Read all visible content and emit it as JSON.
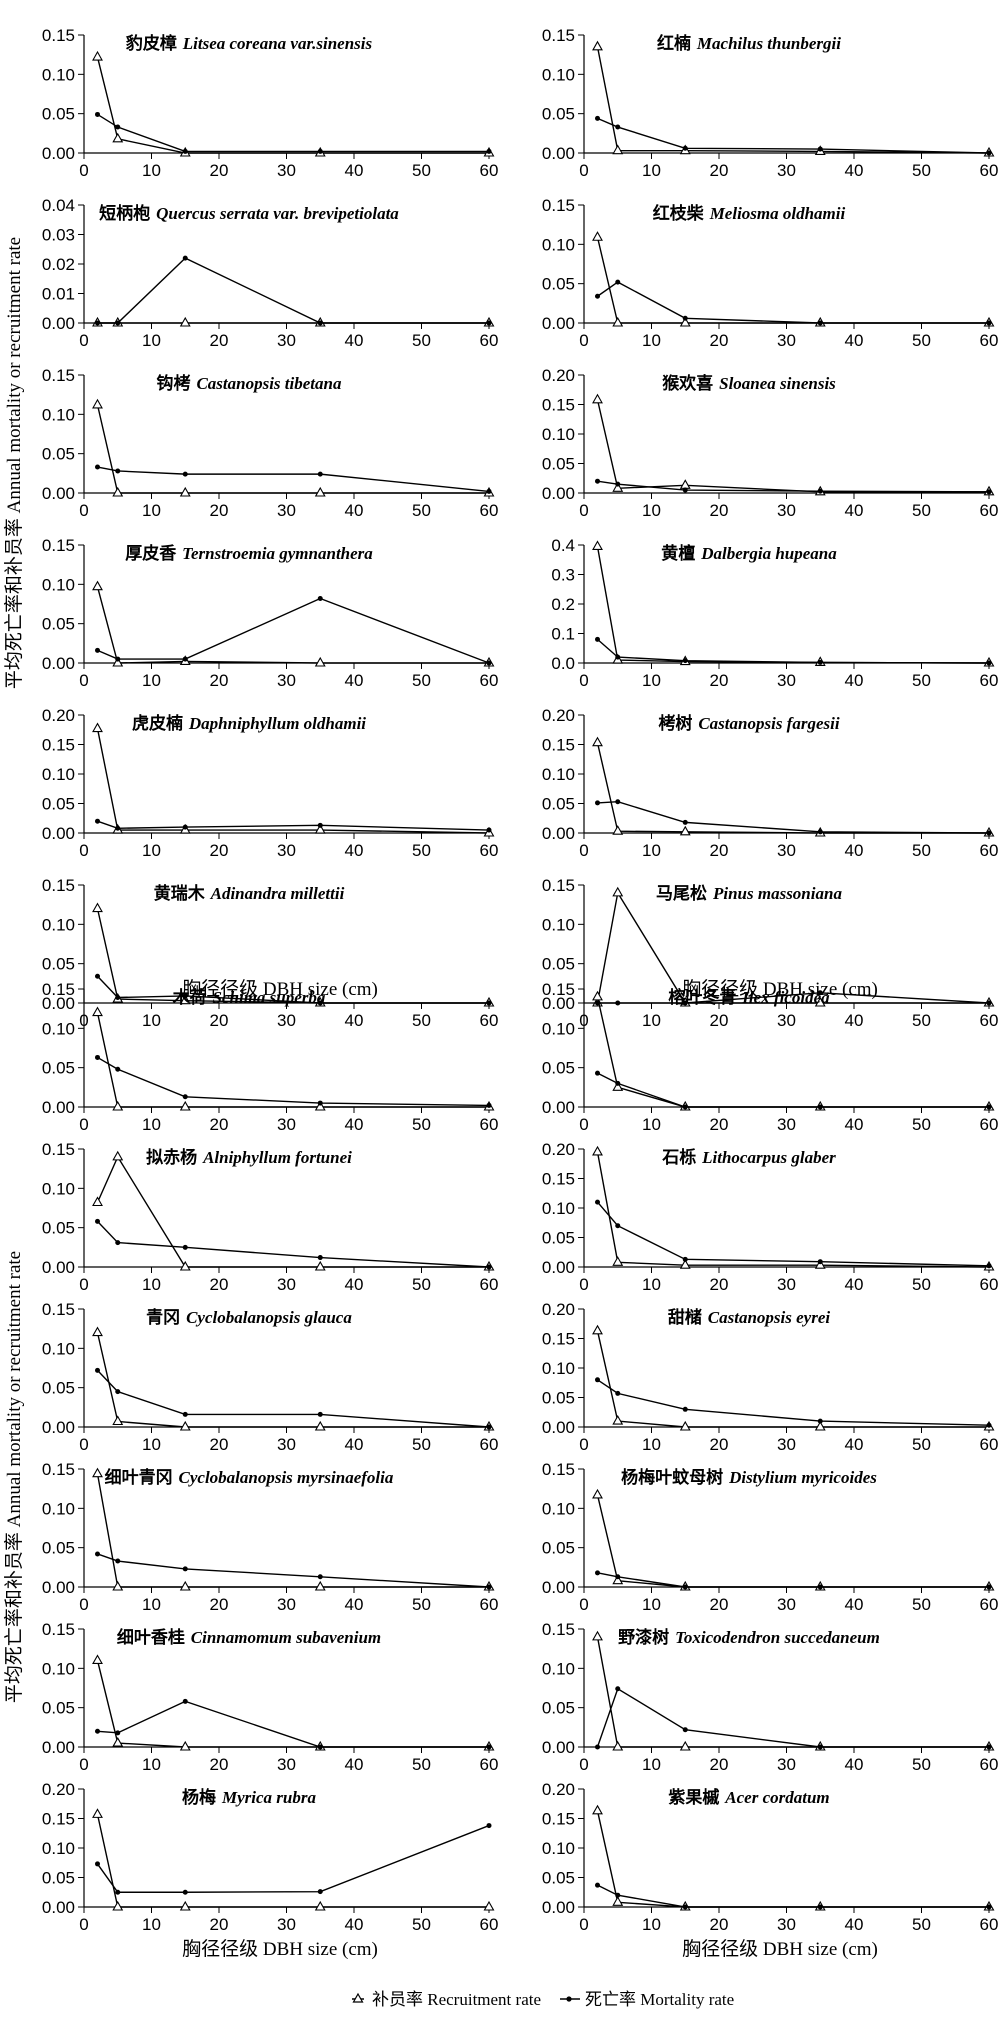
{
  "figure": {
    "ylabel": "平均死亡率和补员率 Annual mortality or recruitment rate",
    "xlabel": "胸径径级  DBH size (cm)",
    "legend": {
      "recruitment": "补员率 Recruitment rate",
      "mortality": "死亡率 Mortality rate"
    },
    "x_ticks": [
      0,
      10,
      20,
      30,
      40,
      50,
      60
    ]
  },
  "chart_data": [
    {
      "type": "line",
      "title_cn": "豹皮樟",
      "title_la": "Litsea coreana var.sinensis",
      "x": [
        2,
        5,
        15,
        35,
        60
      ],
      "ylim": [
        0,
        0.15
      ],
      "y_ticks": [
        "0.00",
        "0.05",
        "0.10",
        "0.15"
      ],
      "series": [
        {
          "name": "补员率 Recruitment rate",
          "values": [
            0.122,
            0.018,
            0,
            0,
            0
          ]
        },
        {
          "name": "死亡率 Mortality rate",
          "values": [
            0.049,
            0.033,
            0.002,
            0.002,
            0.002
          ]
        }
      ]
    },
    {
      "type": "line",
      "title_cn": "红楠",
      "title_la": "Machilus thunbergii",
      "x": [
        2,
        5,
        15,
        35,
        60
      ],
      "ylim": [
        0,
        0.15
      ],
      "y_ticks": [
        "0.00",
        "0.05",
        "0.10",
        "0.15"
      ],
      "series": [
        {
          "name": "补员率 Recruitment rate",
          "values": [
            0.135,
            0.003,
            0.003,
            0.002,
            0
          ]
        },
        {
          "name": "死亡率 Mortality rate",
          "values": [
            0.044,
            0.033,
            0.006,
            0.005,
            0
          ]
        }
      ]
    },
    {
      "type": "line",
      "title_cn": "短柄枹",
      "title_la": "Quercus serrata var. brevipetiolata",
      "x": [
        2,
        5,
        15,
        35,
        60
      ],
      "ylim": [
        0,
        0.04
      ],
      "y_ticks": [
        "0.00",
        "0.01",
        "0.02",
        "0.03",
        "0.04"
      ],
      "series": [
        {
          "name": "补员率 Recruitment rate",
          "values": [
            0,
            0,
            0,
            0,
            0
          ]
        },
        {
          "name": "死亡率 Mortality rate",
          "values": [
            0,
            0,
            0.022,
            0,
            0
          ]
        }
      ]
    },
    {
      "type": "line",
      "title_cn": "红枝柴",
      "title_la": "Meliosma oldhamii",
      "x": [
        2,
        5,
        15,
        35,
        60
      ],
      "ylim": [
        0,
        0.15
      ],
      "y_ticks": [
        "0.00",
        "0.05",
        "0.10",
        "0.15"
      ],
      "series": [
        {
          "name": "补员率 Recruitment rate",
          "values": [
            0.109,
            0,
            0,
            0,
            0
          ]
        },
        {
          "name": "死亡率 Mortality rate",
          "values": [
            0.034,
            0.052,
            0.006,
            0,
            0
          ]
        }
      ]
    },
    {
      "type": "line",
      "title_cn": "钩栲",
      "title_la": "Castanopsis tibetana",
      "x": [
        2,
        5,
        15,
        35,
        60
      ],
      "ylim": [
        0,
        0.15
      ],
      "y_ticks": [
        "0.00",
        "0.05",
        "0.10",
        "0.15"
      ],
      "series": [
        {
          "name": "补员率 Recruitment rate",
          "values": [
            0.112,
            0,
            0,
            0,
            0
          ]
        },
        {
          "name": "死亡率 Mortality rate",
          "values": [
            0.033,
            0.028,
            0.024,
            0.024,
            0.002
          ]
        }
      ]
    },
    {
      "type": "line",
      "title_cn": "猴欢喜",
      "title_la": "Sloanea sinensis",
      "x": [
        2,
        5,
        15,
        35,
        60
      ],
      "ylim": [
        0,
        0.2
      ],
      "y_ticks": [
        "0.00",
        "0.05",
        "0.10",
        "0.15",
        "0.20"
      ],
      "series": [
        {
          "name": "补员率 Recruitment rate",
          "values": [
            0.158,
            0.008,
            0.013,
            0.002,
            0.002
          ]
        },
        {
          "name": "死亡率 Mortality rate",
          "values": [
            0.02,
            0.015,
            0.005,
            0.003,
            0.002
          ]
        }
      ]
    },
    {
      "type": "line",
      "title_cn": "厚皮香",
      "title_la": "Ternstroemia gymnanthera",
      "x": [
        2,
        5,
        15,
        35,
        60
      ],
      "ylim": [
        0,
        0.15
      ],
      "y_ticks": [
        "0.00",
        "0.05",
        "0.10",
        "0.15"
      ],
      "series": [
        {
          "name": "补员率 Recruitment rate",
          "values": [
            0.097,
            0,
            0.002,
            0,
            0
          ]
        },
        {
          "name": "死亡率 Mortality rate",
          "values": [
            0.016,
            0.005,
            0.005,
            0.082,
            0
          ]
        }
      ]
    },
    {
      "type": "line",
      "title_cn": "黄檀",
      "title_la": "Dalbergia hupeana",
      "x": [
        2,
        5,
        15,
        35,
        60
      ],
      "ylim": [
        0,
        0.4
      ],
      "y_ticks": [
        "0.0",
        "0.1",
        "0.2",
        "0.3",
        "0.4"
      ],
      "series": [
        {
          "name": "补员率 Recruitment rate",
          "values": [
            0.395,
            0.01,
            0.005,
            0.002,
            0
          ]
        },
        {
          "name": "死亡率 Mortality rate",
          "values": [
            0.08,
            0.02,
            0.008,
            0.002,
            0
          ]
        }
      ]
    },
    {
      "type": "line",
      "title_cn": "虎皮楠",
      "title_la": "Daphniphyllum oldhamii",
      "x": [
        2,
        5,
        15,
        35,
        60
      ],
      "ylim": [
        0,
        0.2
      ],
      "y_ticks": [
        "0.00",
        "0.05",
        "0.10",
        "0.15",
        "0.20"
      ],
      "series": [
        {
          "name": "补员率 Recruitment rate",
          "values": [
            0.177,
            0.005,
            0.005,
            0.005,
            0
          ]
        },
        {
          "name": "死亡率 Mortality rate",
          "values": [
            0.02,
            0.008,
            0.01,
            0.013,
            0.005
          ]
        }
      ]
    },
    {
      "type": "line",
      "title_cn": "栲树",
      "title_la": "Castanopsis fargesii",
      "x": [
        2,
        5,
        15,
        35,
        60
      ],
      "ylim": [
        0,
        0.2
      ],
      "y_ticks": [
        "0.00",
        "0.05",
        "0.10",
        "0.15",
        "0.20"
      ],
      "series": [
        {
          "name": "补员率 Recruitment rate",
          "values": [
            0.153,
            0.003,
            0.002,
            0,
            0
          ]
        },
        {
          "name": "死亡率 Mortality rate",
          "values": [
            0.051,
            0.053,
            0.018,
            0.002,
            0
          ]
        }
      ]
    },
    {
      "type": "line",
      "title_cn": "黄瑞木",
      "title_la": "Adinandra millettii",
      "x": [
        2,
        5,
        15,
        35,
        60
      ],
      "ylim": [
        0,
        0.15
      ],
      "y_ticks": [
        "0.00",
        "0.05",
        "0.10",
        "0.15"
      ],
      "series": [
        {
          "name": "补员率 Recruitment rate",
          "values": [
            0.12,
            0.005,
            0.003,
            0,
            0
          ]
        },
        {
          "name": "死亡率 Mortality rate",
          "values": [
            0.034,
            0.007,
            0.009,
            0,
            0
          ]
        }
      ]
    },
    {
      "type": "line",
      "title_cn": "马尾松",
      "title_la": "Pinus massoniana",
      "x": [
        2,
        5,
        15,
        35,
        60
      ],
      "ylim": [
        0,
        0.15
      ],
      "y_ticks": [
        "0.00",
        "0.05",
        "0.10",
        "0.15"
      ],
      "series": [
        {
          "name": "补员率 Recruitment rate",
          "values": [
            0,
            0.14,
            0,
            0,
            0
          ]
        },
        {
          "name": "死亡率 Mortality rate",
          "values": [
            0,
            0,
            0,
            0.013,
            0
          ]
        }
      ]
    },
    {
      "type": "line",
      "title_cn": "木荷",
      "title_la": "Schima superba",
      "x": [
        2,
        5,
        15,
        35,
        60
      ],
      "ylim": [
        0,
        0.15
      ],
      "y_ticks": [
        "0.00",
        "0.05",
        "0.10",
        "0.15"
      ],
      "series": [
        {
          "name": "补员率 Recruitment rate",
          "values": [
            0.12,
            0,
            0,
            0,
            0
          ]
        },
        {
          "name": "死亡率 Mortality rate",
          "values": [
            0.063,
            0.048,
            0.013,
            0.005,
            0.002
          ]
        }
      ]
    },
    {
      "type": "line",
      "title_cn": "榕叶冬青",
      "title_la": "Ilex ficoidea",
      "x": [
        2,
        5,
        15,
        35,
        60
      ],
      "ylim": [
        0,
        0.15
      ],
      "y_ticks": [
        "0.00",
        "0.05",
        "0.10",
        "0.15"
      ],
      "series": [
        {
          "name": "补员率 Recruitment rate",
          "values": [
            0.14,
            0.025,
            0,
            0,
            0
          ]
        },
        {
          "name": "死亡率 Mortality rate",
          "values": [
            0.043,
            0.03,
            0,
            0,
            0
          ]
        }
      ]
    },
    {
      "type": "line",
      "title_cn": "拟赤杨",
      "title_la": "Alniphyllum fortunei",
      "x": [
        2,
        5,
        15,
        35,
        60
      ],
      "ylim": [
        0,
        0.15
      ],
      "y_ticks": [
        "0.00",
        "0.05",
        "0.10",
        "0.15"
      ],
      "series": [
        {
          "name": "补员率 Recruitment rate",
          "values": [
            0.082,
            0.14,
            0,
            0,
            0
          ]
        },
        {
          "name": "死亡率 Mortality rate",
          "values": [
            0.058,
            0.031,
            0.025,
            0.012,
            0
          ]
        }
      ]
    },
    {
      "type": "line",
      "title_cn": "石栎",
      "title_la": "Lithocarpus glaber",
      "x": [
        2,
        5,
        15,
        35,
        60
      ],
      "ylim": [
        0,
        0.2
      ],
      "y_ticks": [
        "0.00",
        "0.05",
        "0.10",
        "0.15",
        "0.20"
      ],
      "series": [
        {
          "name": "补员率 Recruitment rate",
          "values": [
            0.195,
            0.008,
            0.003,
            0.003,
            0
          ]
        },
        {
          "name": "死亡率 Mortality rate",
          "values": [
            0.11,
            0.07,
            0.013,
            0.009,
            0.002
          ]
        }
      ]
    },
    {
      "type": "line",
      "title_cn": "青冈",
      "title_la": "Cyclobalanopsis glauca",
      "x": [
        2,
        5,
        15,
        35,
        60
      ],
      "ylim": [
        0,
        0.15
      ],
      "y_ticks": [
        "0.00",
        "0.05",
        "0.10",
        "0.15"
      ],
      "series": [
        {
          "name": "补员率 Recruitment rate",
          "values": [
            0.12,
            0.007,
            0,
            0,
            0
          ]
        },
        {
          "name": "死亡率 Mortality rate",
          "values": [
            0.072,
            0.045,
            0.016,
            0.016,
            0
          ]
        }
      ]
    },
    {
      "type": "line",
      "title_cn": "甜槠",
      "title_la": "Castanopsis eyrei",
      "x": [
        2,
        5,
        15,
        35,
        60
      ],
      "ylim": [
        0,
        0.2
      ],
      "y_ticks": [
        "0.00",
        "0.05",
        "0.10",
        "0.15",
        "0.20"
      ],
      "series": [
        {
          "name": "补员率 Recruitment rate",
          "values": [
            0.163,
            0.01,
            0,
            0,
            0
          ]
        },
        {
          "name": "死亡率 Mortality rate",
          "values": [
            0.08,
            0.057,
            0.03,
            0.01,
            0.003
          ]
        }
      ]
    },
    {
      "type": "line",
      "title_cn": "细叶青冈",
      "title_la": "Cyclobalanopsis myrsinaefolia",
      "x": [
        2,
        5,
        15,
        35,
        60
      ],
      "ylim": [
        0,
        0.15
      ],
      "y_ticks": [
        "0.00",
        "0.05",
        "0.10",
        "0.15"
      ],
      "series": [
        {
          "name": "补员率 Recruitment rate",
          "values": [
            0.144,
            0,
            0,
            0,
            0
          ]
        },
        {
          "name": "死亡率 Mortality rate",
          "values": [
            0.042,
            0.033,
            0.023,
            0.013,
            0
          ]
        }
      ]
    },
    {
      "type": "line",
      "title_cn": "杨梅叶蚊母树",
      "title_la": "Distylium myricoides",
      "x": [
        2,
        5,
        15,
        35,
        60
      ],
      "ylim": [
        0,
        0.15
      ],
      "y_ticks": [
        "0.00",
        "0.05",
        "0.10",
        "0.15"
      ],
      "series": [
        {
          "name": "补员率 Recruitment rate",
          "values": [
            0.117,
            0.008,
            0,
            0,
            0
          ]
        },
        {
          "name": "死亡率 Mortality rate",
          "values": [
            0.018,
            0.013,
            0,
            0,
            0
          ]
        }
      ]
    },
    {
      "type": "line",
      "title_cn": "细叶香桂",
      "title_la": "Cinnamomum subavenium",
      "x": [
        2,
        5,
        15,
        35,
        60
      ],
      "ylim": [
        0,
        0.15
      ],
      "y_ticks": [
        "0.00",
        "0.05",
        "0.10",
        "0.15"
      ],
      "series": [
        {
          "name": "补员率 Recruitment rate",
          "values": [
            0.11,
            0.005,
            0,
            0,
            0
          ]
        },
        {
          "name": "死亡率 Mortality rate",
          "values": [
            0.02,
            0.018,
            0.058,
            0,
            0
          ]
        }
      ]
    },
    {
      "type": "line",
      "title_cn": "野漆树",
      "title_la": "Toxicodendron succedaneum",
      "x": [
        2,
        5,
        15,
        35,
        60
      ],
      "ylim": [
        0,
        0.15
      ],
      "y_ticks": [
        "0.00",
        "0.05",
        "0.10",
        "0.15"
      ],
      "series": [
        {
          "name": "补员率 Recruitment rate",
          "values": [
            0.14,
            0,
            0,
            0,
            0
          ]
        },
        {
          "name": "死亡率 Mortality rate",
          "values": [
            0,
            0.074,
            0.022,
            0,
            0
          ]
        }
      ]
    },
    {
      "type": "line",
      "title_cn": "杨梅",
      "title_la": "Myrica rubra",
      "x": [
        2,
        5,
        15,
        35,
        60
      ],
      "ylim": [
        0,
        0.2
      ],
      "y_ticks": [
        "0.00",
        "0.05",
        "0.10",
        "0.15",
        "0.20"
      ],
      "series": [
        {
          "name": "补员率 Recruitment rate",
          "values": [
            0.157,
            0,
            0,
            0,
            0
          ]
        },
        {
          "name": "死亡率 Mortality rate",
          "values": [
            0.073,
            0.025,
            0.025,
            0.026,
            0.138
          ]
        }
      ]
    },
    {
      "type": "line",
      "title_cn": "紫果槭",
      "title_la": "Acer cordatum",
      "x": [
        2,
        5,
        15,
        35,
        60
      ],
      "ylim": [
        0,
        0.2
      ],
      "y_ticks": [
        "0.00",
        "0.05",
        "0.10",
        "0.15",
        "0.20"
      ],
      "series": [
        {
          "name": "补员率 Recruitment rate",
          "values": [
            0.163,
            0.008,
            0,
            0,
            0
          ]
        },
        {
          "name": "死亡率 Mortality rate",
          "values": [
            0.037,
            0.02,
            0,
            0,
            0
          ]
        }
      ]
    }
  ]
}
